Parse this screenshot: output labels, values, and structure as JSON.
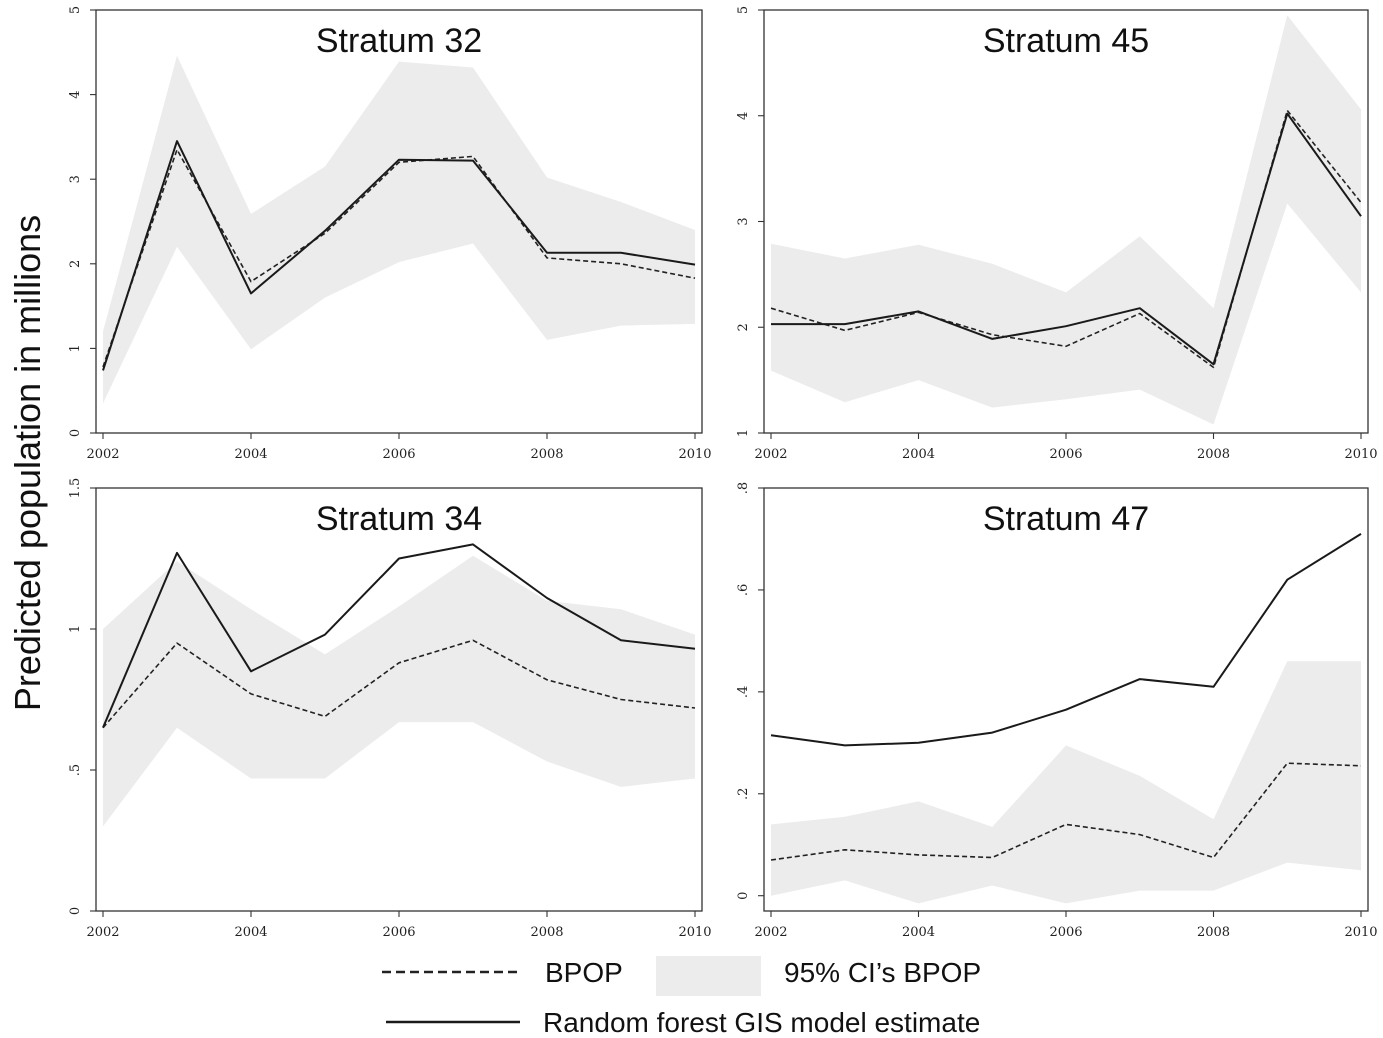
{
  "figure": {
    "ylabel": "Predicted population in millions",
    "legend": {
      "bpop": "BPOP",
      "ci": "95% CI’s BPOP",
      "rf": "Random forest GIS model estimate"
    },
    "colors": {
      "ci_band": "#ececec",
      "bpop_line": "#222222",
      "rf_line": "#1a1a1a"
    }
  },
  "chart_data": [
    {
      "type": "line",
      "title": "Stratum 32",
      "x": [
        2002,
        2003,
        2004,
        2005,
        2006,
        2007,
        2008,
        2009,
        2010
      ],
      "xticks": [
        2002,
        2004,
        2006,
        2008,
        2010
      ],
      "xtick_labels": [
        "2002",
        "2004",
        "2006",
        "2008",
        "2010"
      ],
      "ylim": [
        0,
        5
      ],
      "yticks": [
        0,
        1,
        2,
        3,
        4,
        5
      ],
      "ytick_labels": [
        "0",
        "1",
        "2",
        "3",
        "4",
        "5"
      ],
      "series": [
        {
          "name": "BPOP",
          "style": "dashed",
          "values": [
            0.78,
            3.35,
            1.79,
            2.36,
            3.2,
            3.27,
            2.07,
            2.0,
            1.83
          ]
        },
        {
          "name": "Random forest GIS model estimate",
          "style": "solid",
          "values": [
            0.74,
            3.45,
            1.65,
            2.39,
            3.23,
            3.22,
            2.13,
            2.13,
            1.99
          ]
        }
      ],
      "ci": {
        "name": "95% CI’s BPOP",
        "lower": [
          0.35,
          2.2,
          0.99,
          1.6,
          2.02,
          2.24,
          1.1,
          1.27,
          1.29
        ],
        "upper": [
          1.2,
          4.46,
          2.59,
          3.15,
          4.39,
          4.32,
          3.02,
          2.73,
          2.4
        ]
      }
    },
    {
      "type": "line",
      "title": "Stratum 45",
      "x": [
        2002,
        2003,
        2004,
        2005,
        2006,
        2007,
        2008,
        2009,
        2010
      ],
      "xticks": [
        2002,
        2004,
        2006,
        2008,
        2010
      ],
      "xtick_labels": [
        "2002",
        "2004",
        "2006",
        "2008",
        "2010"
      ],
      "ylim": [
        1,
        5
      ],
      "yticks": [
        1,
        2,
        3,
        4,
        5
      ],
      "ytick_labels": [
        "1",
        "2",
        "3",
        "4",
        "5"
      ],
      "series": [
        {
          "name": "BPOP",
          "style": "dashed",
          "values": [
            2.18,
            1.97,
            2.14,
            1.93,
            1.82,
            2.13,
            1.62,
            4.05,
            3.18
          ]
        },
        {
          "name": "Random forest GIS model estimate",
          "style": "solid",
          "values": [
            2.03,
            2.03,
            2.15,
            1.89,
            2.01,
            2.18,
            1.65,
            4.02,
            3.05
          ]
        }
      ],
      "ci": {
        "name": "95% CI’s BPOP",
        "lower": [
          1.59,
          1.29,
          1.5,
          1.24,
          1.32,
          1.41,
          1.08,
          3.17,
          2.33
        ],
        "upper": [
          2.79,
          2.65,
          2.78,
          2.6,
          2.33,
          2.86,
          2.18,
          4.95,
          4.06
        ]
      }
    },
    {
      "type": "line",
      "title": "Stratum 34",
      "x": [
        2002,
        2003,
        2004,
        2005,
        2006,
        2007,
        2008,
        2009,
        2010
      ],
      "xticks": [
        2002,
        2004,
        2006,
        2008,
        2010
      ],
      "xtick_labels": [
        "2002",
        "2004",
        "2006",
        "2008",
        "2010"
      ],
      "ylim": [
        0,
        1.5
      ],
      "yticks": [
        0,
        0.5,
        1,
        1.5
      ],
      "ytick_labels": [
        "0",
        ".5",
        "1",
        "1.5"
      ],
      "series": [
        {
          "name": "BPOP",
          "style": "dashed",
          "values": [
            0.65,
            0.95,
            0.77,
            0.69,
            0.88,
            0.96,
            0.82,
            0.75,
            0.72
          ]
        },
        {
          "name": "Random forest GIS model estimate",
          "style": "solid",
          "values": [
            0.65,
            1.27,
            0.85,
            0.98,
            1.25,
            1.3,
            1.11,
            0.96,
            0.93
          ]
        }
      ],
      "ci": {
        "name": "95% CI’s BPOP",
        "lower": [
          0.3,
          0.65,
          0.47,
          0.47,
          0.67,
          0.67,
          0.53,
          0.44,
          0.47
        ],
        "upper": [
          1.0,
          1.24,
          1.07,
          0.91,
          1.08,
          1.26,
          1.1,
          1.07,
          0.98
        ]
      }
    },
    {
      "type": "line",
      "title": "Stratum 47",
      "x": [
        2002,
        2003,
        2004,
        2005,
        2006,
        2007,
        2008,
        2009,
        2010
      ],
      "xticks": [
        2002,
        2004,
        2006,
        2008,
        2010
      ],
      "xtick_labels": [
        "2002",
        "2004",
        "2006",
        "2008",
        "2010"
      ],
      "ylim": [
        -0.03,
        0.8
      ],
      "yticks": [
        0,
        0.2,
        0.4,
        0.6,
        0.8
      ],
      "ytick_labels": [
        "0",
        ".2",
        ".4",
        ".6",
        ".8"
      ],
      "series": [
        {
          "name": "BPOP",
          "style": "dashed",
          "values": [
            0.07,
            0.09,
            0.08,
            0.075,
            0.14,
            0.12,
            0.075,
            0.26,
            0.255
          ]
        },
        {
          "name": "Random forest GIS model estimate",
          "style": "solid",
          "values": [
            0.315,
            0.295,
            0.3,
            0.32,
            0.365,
            0.425,
            0.41,
            0.62,
            0.71
          ]
        }
      ],
      "ci": {
        "name": "95% CI’s BPOP",
        "lower": [
          0.0,
          0.03,
          -0.015,
          0.02,
          -0.015,
          0.01,
          0.01,
          0.065,
          0.05
        ],
        "upper": [
          0.14,
          0.155,
          0.185,
          0.135,
          0.295,
          0.235,
          0.15,
          0.46,
          0.46
        ]
      }
    }
  ]
}
